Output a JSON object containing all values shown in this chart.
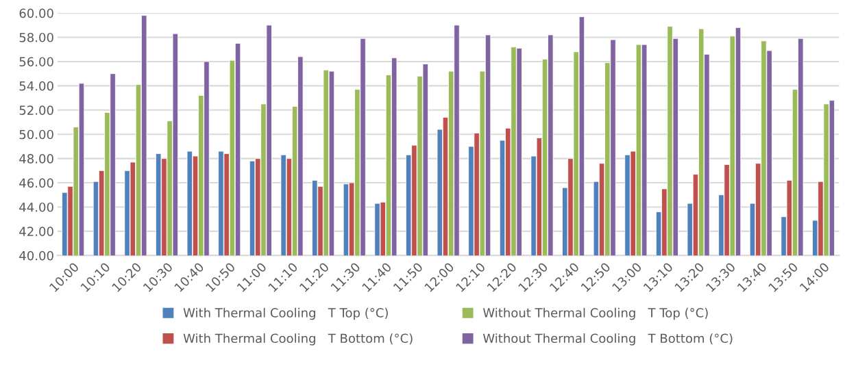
{
  "chart_data": {
    "type": "bar",
    "categories": [
      "10:00",
      "10:10",
      "10:20",
      "10:30",
      "10:40",
      "10:50",
      "11:00",
      "11:10",
      "11:20",
      "11:30",
      "11:40",
      "11:50",
      "12:00",
      "12:10",
      "12:20",
      "12:30",
      "12:40",
      "12:50",
      "13:00",
      "13:10",
      "13:20",
      "13:30",
      "13:40",
      "13:50",
      "14:00"
    ],
    "series": [
      {
        "name": "With Thermal Cooling   T Top (°C)",
        "color": "#4f81bd",
        "values": [
          45.2,
          46.1,
          47.0,
          48.4,
          48.6,
          48.6,
          47.8,
          48.3,
          46.2,
          45.9,
          44.3,
          48.3,
          50.4,
          49.0,
          49.5,
          48.2,
          45.6,
          46.1,
          48.3,
          43.6,
          44.3,
          45.0,
          44.3,
          43.2,
          42.9
        ]
      },
      {
        "name": "With Thermal Cooling   T Bottom (°C)",
        "color": "#c0504d",
        "values": [
          45.7,
          47.0,
          47.7,
          48.0,
          48.2,
          48.4,
          48.0,
          48.0,
          45.7,
          46.0,
          44.4,
          49.1,
          51.4,
          50.1,
          50.5,
          49.7,
          48.0,
          47.6,
          48.6,
          45.5,
          46.7,
          47.5,
          47.6,
          46.2,
          46.1
        ]
      },
      {
        "name": "Without Thermal Cooling   T Top (°C)",
        "color": "#9bbb59",
        "values": [
          50.6,
          51.8,
          54.1,
          51.1,
          53.2,
          56.1,
          52.5,
          52.3,
          55.3,
          53.7,
          54.9,
          54.8,
          55.2,
          55.2,
          57.2,
          56.2,
          56.8,
          55.9,
          57.4,
          58.9,
          58.7,
          58.1,
          57.7,
          53.7,
          52.5
        ]
      },
      {
        "name": "Without Thermal Cooling   T Bottom (°C)",
        "color": "#8064a2",
        "values": [
          54.2,
          55.0,
          59.8,
          58.3,
          56.0,
          57.5,
          59.0,
          56.4,
          55.2,
          57.9,
          56.3,
          55.8,
          59.0,
          58.2,
          57.1,
          58.2,
          59.7,
          57.8,
          57.4,
          57.9,
          56.6,
          58.8,
          56.9,
          57.9,
          52.8
        ]
      }
    ],
    "ylim": [
      40,
      60
    ],
    "yticks": [
      {
        "value": 40,
        "label": "40.00"
      },
      {
        "value": 42,
        "label": "42.00"
      },
      {
        "value": 44,
        "label": "44.00"
      },
      {
        "value": 46,
        "label": "46.00"
      },
      {
        "value": 48,
        "label": "48.00"
      },
      {
        "value": 50,
        "label": "50.00"
      },
      {
        "value": 52,
        "label": "52.00"
      },
      {
        "value": 54,
        "label": "54.00"
      },
      {
        "value": 56,
        "label": "56.00"
      },
      {
        "value": 58,
        "label": "58.00"
      },
      {
        "value": 60,
        "label": "60.00"
      }
    ],
    "grid": "y",
    "legend": "bottom"
  }
}
